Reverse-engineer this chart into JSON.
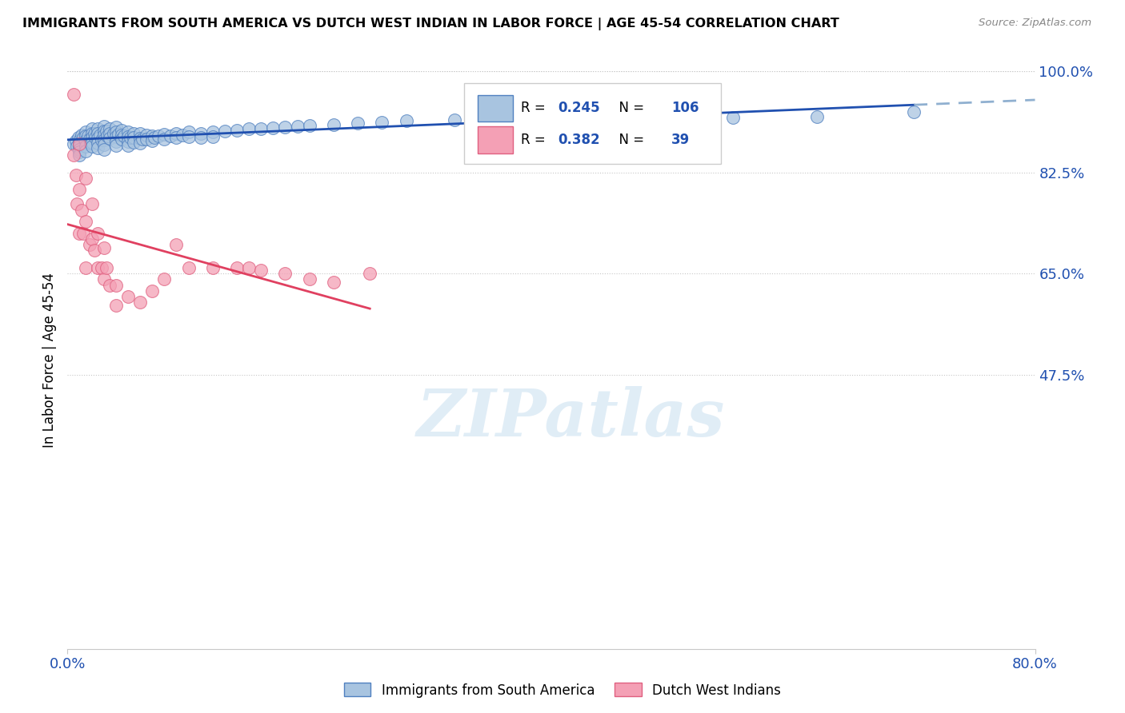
{
  "title": "IMMIGRANTS FROM SOUTH AMERICA VS DUTCH WEST INDIAN IN LABOR FORCE | AGE 45-54 CORRELATION CHART",
  "source": "Source: ZipAtlas.com",
  "ylabel": "In Labor Force | Age 45-54",
  "xlim": [
    0.0,
    0.8
  ],
  "ylim": [
    0.0,
    1.0
  ],
  "ytick_positions": [
    0.475,
    0.65,
    0.825,
    1.0
  ],
  "ytick_labels": [
    "47.5%",
    "65.0%",
    "82.5%",
    "100.0%"
  ],
  "xtick_positions": [
    0.0,
    0.8
  ],
  "xtick_labels": [
    "0.0%",
    "80.0%"
  ],
  "blue_R": 0.245,
  "blue_N": 106,
  "pink_R": 0.382,
  "pink_N": 39,
  "blue_fill": "#a8c4e0",
  "pink_fill": "#f4a0b5",
  "blue_edge": "#5080c0",
  "pink_edge": "#e06080",
  "blue_line": "#2050b0",
  "pink_line": "#e04060",
  "dash_line": "#90b0d0",
  "legend_label_blue": "Immigrants from South America",
  "legend_label_pink": "Dutch West Indians",
  "watermark": "ZIPatlas",
  "blue_x": [
    0.005,
    0.007,
    0.008,
    0.009,
    0.01,
    0.01,
    0.01,
    0.01,
    0.01,
    0.01,
    0.012,
    0.013,
    0.015,
    0.015,
    0.015,
    0.015,
    0.015,
    0.017,
    0.018,
    0.019,
    0.02,
    0.02,
    0.02,
    0.02,
    0.02,
    0.022,
    0.023,
    0.025,
    0.025,
    0.025,
    0.025,
    0.025,
    0.027,
    0.028,
    0.03,
    0.03,
    0.03,
    0.03,
    0.03,
    0.03,
    0.032,
    0.033,
    0.035,
    0.035,
    0.035,
    0.038,
    0.04,
    0.04,
    0.04,
    0.04,
    0.04,
    0.042,
    0.045,
    0.045,
    0.045,
    0.047,
    0.05,
    0.05,
    0.05,
    0.05,
    0.052,
    0.055,
    0.055,
    0.055,
    0.06,
    0.06,
    0.06,
    0.062,
    0.065,
    0.065,
    0.07,
    0.07,
    0.072,
    0.075,
    0.08,
    0.08,
    0.085,
    0.09,
    0.09,
    0.095,
    0.1,
    0.1,
    0.11,
    0.11,
    0.12,
    0.12,
    0.13,
    0.14,
    0.15,
    0.16,
    0.17,
    0.18,
    0.19,
    0.2,
    0.22,
    0.24,
    0.26,
    0.28,
    0.32,
    0.35,
    0.4,
    0.45,
    0.5,
    0.55,
    0.62,
    0.7
  ],
  "blue_y": [
    0.875,
    0.88,
    0.87,
    0.885,
    0.88,
    0.875,
    0.87,
    0.865,
    0.86,
    0.855,
    0.89,
    0.885,
    0.895,
    0.888,
    0.88,
    0.87,
    0.862,
    0.888,
    0.882,
    0.876,
    0.9,
    0.893,
    0.885,
    0.877,
    0.87,
    0.893,
    0.886,
    0.9,
    0.892,
    0.884,
    0.876,
    0.868,
    0.889,
    0.881,
    0.905,
    0.897,
    0.889,
    0.881,
    0.873,
    0.865,
    0.896,
    0.888,
    0.9,
    0.892,
    0.884,
    0.892,
    0.903,
    0.895,
    0.887,
    0.879,
    0.871,
    0.891,
    0.898,
    0.89,
    0.882,
    0.888,
    0.895,
    0.887,
    0.879,
    0.871,
    0.885,
    0.893,
    0.885,
    0.877,
    0.892,
    0.884,
    0.876,
    0.882,
    0.89,
    0.882,
    0.888,
    0.88,
    0.885,
    0.888,
    0.891,
    0.883,
    0.888,
    0.893,
    0.885,
    0.89,
    0.895,
    0.887,
    0.893,
    0.885,
    0.895,
    0.887,
    0.896,
    0.898,
    0.9,
    0.9,
    0.902,
    0.904,
    0.905,
    0.906,
    0.908,
    0.91,
    0.912,
    0.914,
    0.916,
    0.918,
    0.92,
    0.922,
    0.924,
    0.92,
    0.922,
    0.93
  ],
  "pink_x": [
    0.005,
    0.005,
    0.007,
    0.008,
    0.01,
    0.01,
    0.01,
    0.012,
    0.013,
    0.015,
    0.015,
    0.015,
    0.018,
    0.02,
    0.02,
    0.022,
    0.025,
    0.025,
    0.028,
    0.03,
    0.03,
    0.032,
    0.035,
    0.04,
    0.04,
    0.05,
    0.06,
    0.07,
    0.08,
    0.09,
    0.1,
    0.12,
    0.14,
    0.15,
    0.16,
    0.18,
    0.2,
    0.22,
    0.25
  ],
  "pink_y": [
    0.96,
    0.855,
    0.82,
    0.77,
    0.875,
    0.795,
    0.72,
    0.76,
    0.72,
    0.815,
    0.74,
    0.66,
    0.7,
    0.77,
    0.71,
    0.69,
    0.72,
    0.66,
    0.66,
    0.695,
    0.64,
    0.66,
    0.63,
    0.63,
    0.595,
    0.61,
    0.6,
    0.62,
    0.64,
    0.7,
    0.66,
    0.66,
    0.66,
    0.66,
    0.655,
    0.65,
    0.64,
    0.635,
    0.65
  ]
}
